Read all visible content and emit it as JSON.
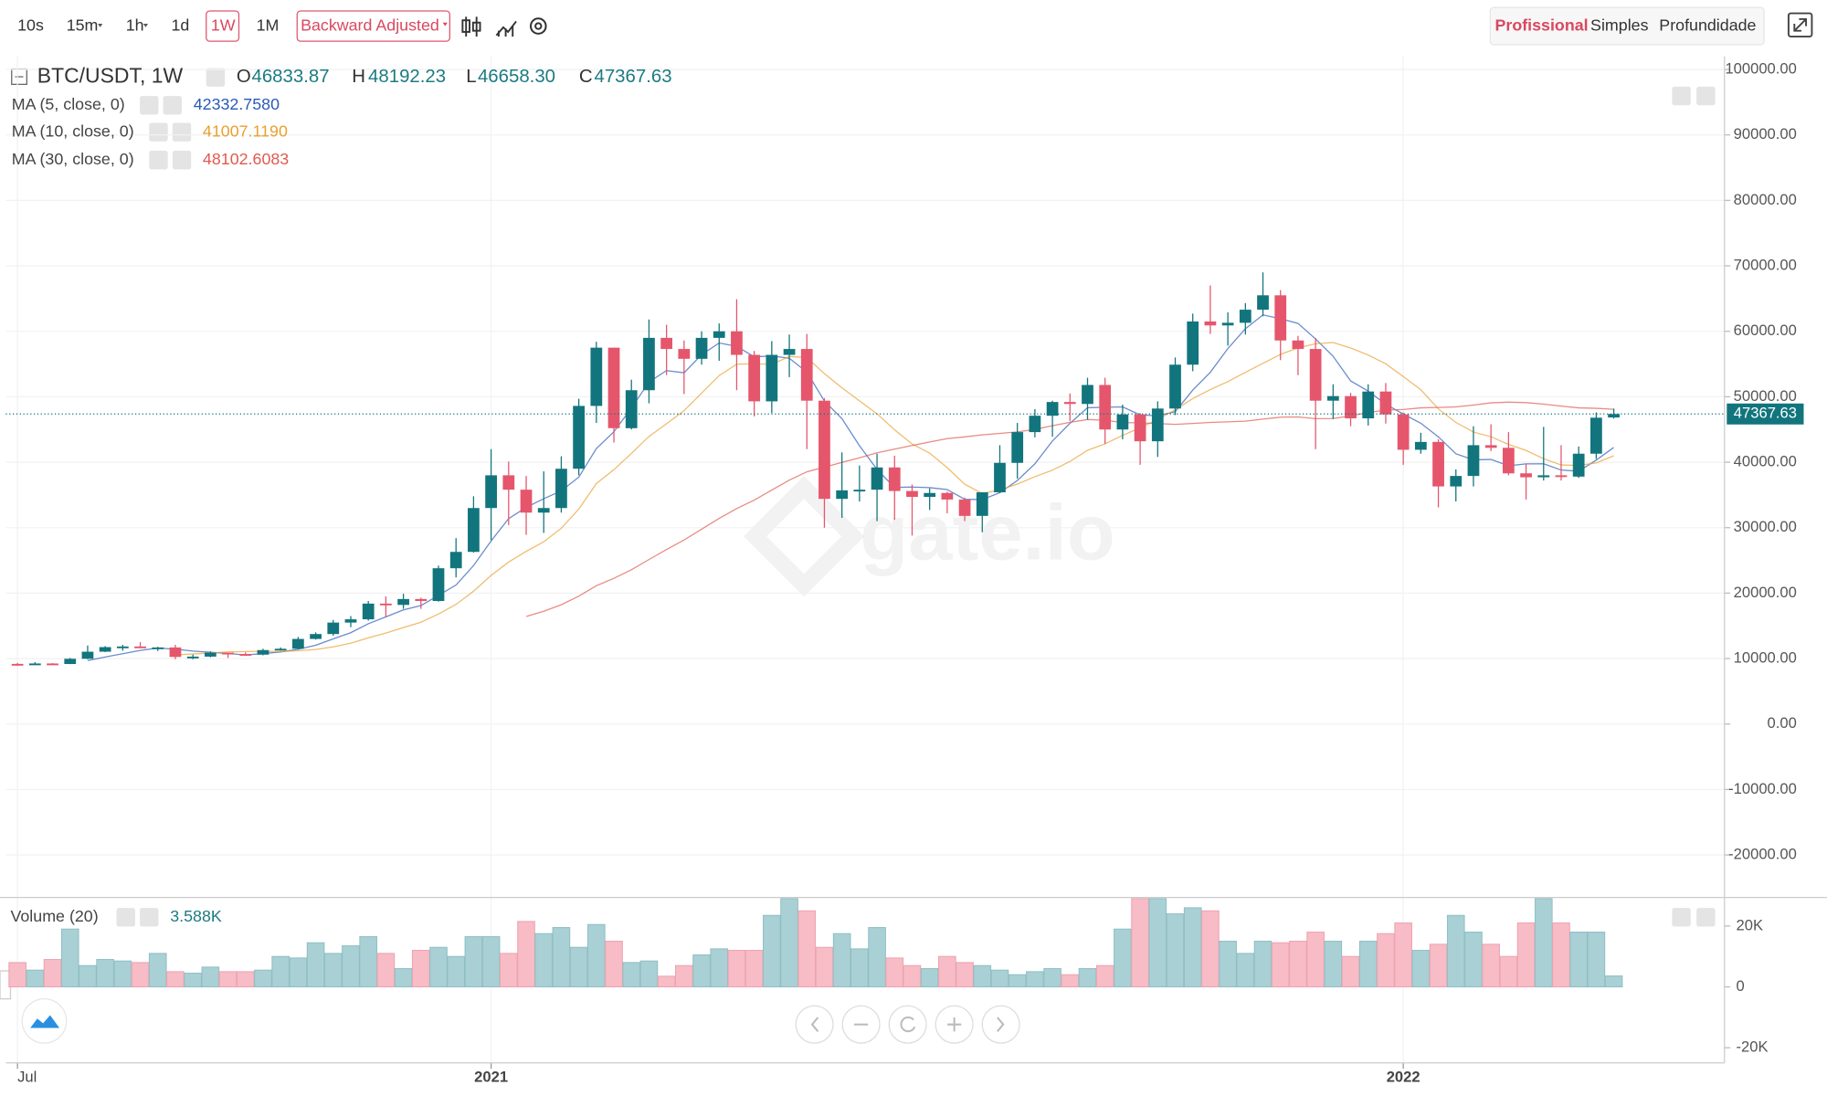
{
  "toolbar": {
    "intervals": [
      "10s",
      "15m",
      "1h",
      "1d",
      "1W",
      "1M"
    ],
    "adjustment": "Backward Adjusted",
    "views": [
      "Profissional",
      "Simples",
      "Profundidade"
    ]
  },
  "watermark": "gate.io",
  "chart_data": {
    "type": "candlestick",
    "title": "BTC/USDT, 1W",
    "ohlc_labels": [
      "O",
      "H",
      "L",
      "C"
    ],
    "ohlc_value_labels": [
      "46833.87",
      "48192.23",
      "46658.30",
      "47367.63"
    ],
    "up_color": "#12757d",
    "down_color": "#e5566c",
    "categories": [
      "Jul",
      null,
      null,
      null,
      null,
      null,
      null,
      null,
      null,
      null,
      null,
      null,
      null,
      null,
      null,
      null,
      null,
      null,
      null,
      null,
      null,
      null,
      null,
      null,
      null,
      null,
      null,
      "2021",
      null,
      null,
      null,
      null,
      null,
      null,
      null,
      null,
      null,
      null,
      null,
      null,
      null,
      null,
      null,
      null,
      null,
      null,
      null,
      null,
      null,
      null,
      null,
      null,
      null,
      null,
      null,
      null,
      null,
      null,
      null,
      null,
      null,
      null,
      null,
      null,
      null,
      null,
      null,
      null,
      null,
      null,
      null,
      null,
      null,
      null,
      null,
      null,
      null,
      null,
      null,
      "2022",
      null,
      null,
      null,
      null,
      null,
      null,
      null,
      null,
      null,
      null,
      null,
      null
    ],
    "open": [
      9190,
      9070,
      9250,
      9170,
      9970,
      11050,
      11750,
      11850,
      11650,
      11700,
      10250,
      10300,
      10900,
      10700,
      10600,
      11300,
      11500,
      13000,
      13750,
      15500,
      16000,
      18400,
      18200,
      19100,
      18800,
      23800,
      26300,
      33000,
      38000,
      35800,
      32300,
      33000,
      39000,
      48600,
      57500,
      45200,
      51000,
      59000,
      57300,
      55800,
      59000,
      60000,
      56400,
      49300,
      56400,
      57300,
      49400,
      34400,
      35700,
      35800,
      39200,
      35600,
      34700,
      35300,
      34300,
      31800,
      35400,
      39900,
      44600,
      47100,
      49200,
      48900,
      51800,
      45000,
      47300,
      43200,
      48200,
      54900,
      61500,
      60900,
      61300,
      63300,
      65500,
      58600,
      57300,
      49400,
      50100,
      46700,
      50800,
      47300,
      41900,
      43100,
      36300,
      37900,
      42600,
      42200,
      38300,
      37700,
      38000,
      37800,
      41300,
      46833.87
    ],
    "high": [
      9350,
      9450,
      9300,
      10100,
      12000,
      11900,
      12100,
      12500,
      11800,
      12100,
      10600,
      11100,
      10900,
      10950,
      11500,
      11700,
      13300,
      14000,
      15900,
      16500,
      18800,
      19500,
      19900,
      19300,
      24200,
      28400,
      34800,
      42000,
      40100,
      37900,
      38600,
      40900,
      49700,
      58400,
      57500,
      52600,
      61800,
      61000,
      58600,
      60000,
      61200,
      64900,
      57000,
      58500,
      59500,
      59600,
      49800,
      41500,
      39500,
      41300,
      41000,
      36600,
      36000,
      35500,
      34600,
      35400,
      42600,
      46000,
      48100,
      49400,
      50500,
      52900,
      52900,
      48800,
      47500,
      49300,
      56000,
      62700,
      67000,
      62900,
      64300,
      69000,
      66300,
      59300,
      59000,
      51900,
      50600,
      51900,
      52100,
      47600,
      44500,
      43500,
      38900,
      45500,
      45800,
      44600,
      39800,
      45400,
      42600,
      42400,
      47600,
      48192.23
    ],
    "low": [
      8900,
      9050,
      9000,
      9150,
      9900,
      11000,
      11200,
      11600,
      11150,
      9900,
      9900,
      10200,
      10100,
      10400,
      10500,
      11200,
      11400,
      12900,
      13500,
      14800,
      15800,
      16300,
      17600,
      17600,
      18700,
      22400,
      26200,
      28100,
      30400,
      28900,
      29200,
      32300,
      38000,
      46000,
      43000,
      45000,
      49000,
      53300,
      50400,
      54900,
      55500,
      51000,
      47000,
      47500,
      53000,
      42000,
      30000,
      31500,
      34000,
      31000,
      31200,
      28800,
      32700,
      32200,
      31000,
      29300,
      35300,
      37500,
      43800,
      43900,
      46300,
      46500,
      42800,
      43500,
      39600,
      40800,
      47200,
      53900,
      59600,
      57800,
      59500,
      62300,
      55600,
      53300,
      42000,
      46600,
      45500,
      45600,
      45900,
      39600,
      41300,
      33100,
      34000,
      36300,
      41700,
      38000,
      34300,
      37200,
      37200,
      37600,
      40500,
      46658.3
    ],
    "close": [
      9070,
      9250,
      9170,
      9970,
      11050,
      11750,
      11850,
      11650,
      11700,
      10250,
      10300,
      10900,
      10700,
      10600,
      11300,
      11500,
      13000,
      13750,
      15500,
      16000,
      18400,
      18200,
      19100,
      18800,
      23800,
      26300,
      33000,
      38000,
      35800,
      32300,
      33000,
      39000,
      48600,
      57500,
      45200,
      51000,
      59000,
      57300,
      55800,
      59000,
      60000,
      56400,
      49300,
      56400,
      57300,
      49400,
      34400,
      35700,
      35800,
      39200,
      35600,
      34700,
      35300,
      34300,
      31800,
      35400,
      39900,
      44600,
      47100,
      49200,
      48900,
      51800,
      45000,
      47300,
      43200,
      48200,
      54900,
      61500,
      60900,
      61300,
      63300,
      65500,
      58600,
      57300,
      49400,
      50100,
      46700,
      50800,
      47300,
      41900,
      43100,
      36300,
      37900,
      42600,
      42200,
      38300,
      37700,
      38000,
      37800,
      41300,
      46800,
      47367.63
    ],
    "indicators": [
      {
        "name": "MA (5, close, 0)",
        "period": 5,
        "color": "#2a5ab8",
        "value": {
          "value": 42332.758,
          "label": "42332.7580"
        }
      },
      {
        "name": "MA (10, close, 0)",
        "period": 10,
        "color": "#e8a030",
        "value": {
          "value": 41007.119,
          "label": "41007.1190"
        }
      },
      {
        "name": "MA (30, close, 0)",
        "period": 30,
        "color": "#e05a50",
        "value": {
          "value": 48102.6083,
          "label": "48102.6083"
        }
      }
    ],
    "ylim": [
      -26500,
      102000
    ],
    "yticks": [
      {
        "value": 100000,
        "label": "100000.00"
      },
      {
        "value": 90000,
        "label": "90000.00"
      },
      {
        "value": 80000,
        "label": "80000.00"
      },
      {
        "value": 70000,
        "label": "70000.00"
      },
      {
        "value": 60000,
        "label": "60000.00"
      },
      {
        "value": 50000,
        "label": "50000.00"
      },
      {
        "value": 40000,
        "label": "40000.00"
      },
      {
        "value": 30000,
        "label": "30000.00"
      },
      {
        "value": 20000,
        "label": "20000.00"
      },
      {
        "value": 10000,
        "label": "10000.00"
      },
      {
        "value": 0,
        "label": "0.00"
      },
      {
        "value": -10000,
        "label": "-10000.00"
      },
      {
        "value": -20000,
        "label": "-20000.00"
      }
    ],
    "volume": {
      "title": "Volume (20)",
      "up_color": "#a9d0d4",
      "down_color": "#f7bcc6",
      "values": [
        8000,
        5500,
        9000,
        19000,
        7000,
        9000,
        8500,
        8000,
        11000,
        5000,
        4500,
        6500,
        5000,
        5000,
        5500,
        10000,
        9500,
        14500,
        11000,
        13500,
        16500,
        11000,
        6000,
        12000,
        13000,
        10000,
        16500,
        16500,
        11000,
        21500,
        17500,
        19500,
        13000,
        20500,
        15000,
        8000,
        8500,
        3500,
        7000,
        10500,
        12500,
        12000,
        12000,
        23500,
        30000,
        25000,
        13000,
        17500,
        12500,
        19500,
        9500,
        7000,
        6000,
        10000,
        8000,
        7000,
        5500,
        4000,
        5000,
        6000,
        4000,
        6000,
        7000,
        19000,
        30000,
        30000,
        24000,
        26000,
        25000,
        15000,
        11000,
        15000,
        14500,
        15000,
        18000,
        15000,
        10000,
        15000,
        17500,
        21000,
        12000,
        14000,
        23500,
        18000,
        14000,
        10000,
        21000,
        30000,
        21000,
        18000,
        18000,
        3588
      ],
      "last_value_label": "3.588K",
      "ylim": [
        -25000,
        29000
      ],
      "yticks": [
        {
          "value": 20000,
          "label": "20K"
        },
        0,
        {
          "value": -20000,
          "label": "-20K"
        }
      ]
    }
  }
}
